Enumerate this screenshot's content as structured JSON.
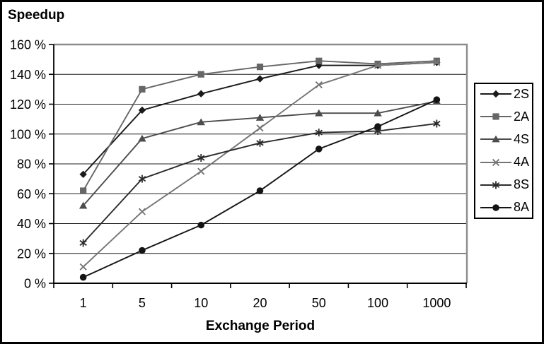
{
  "chart_data": {
    "type": "line",
    "title": "Speedup",
    "xlabel": "Exchange Period",
    "ylabel": "",
    "categories": [
      "1",
      "5",
      "10",
      "20",
      "50",
      "100",
      "1000"
    ],
    "ylim": [
      0,
      160
    ],
    "y_tick_step": 20,
    "y_ticks": [
      "0 %",
      "20 %",
      "40 %",
      "60 %",
      "80 %",
      "100 %",
      "120 %",
      "140 %",
      "160 %"
    ],
    "grid": "horizontal",
    "legend_position": "right",
    "series": [
      {
        "name": "2S",
        "marker": "diamond",
        "color": "#1a1a1a",
        "values": [
          73,
          116,
          127,
          137,
          146,
          146,
          148
        ]
      },
      {
        "name": "2A",
        "marker": "square",
        "color": "#666666",
        "values": [
          62,
          130,
          140,
          145,
          149,
          147,
          149
        ]
      },
      {
        "name": "4S",
        "marker": "triangle",
        "color": "#4d4d4d",
        "values": [
          52,
          97,
          108,
          111,
          114,
          114,
          122
        ]
      },
      {
        "name": "4A",
        "marker": "x",
        "color": "#757575",
        "values": [
          11,
          48,
          75,
          104,
          133,
          146,
          148
        ]
      },
      {
        "name": "8S",
        "marker": "asterisk",
        "color": "#2b2b2b",
        "values": [
          27,
          70,
          84,
          94,
          101,
          102,
          107
        ]
      },
      {
        "name": "8A",
        "marker": "circle",
        "color": "#141414",
        "values": [
          4,
          22,
          39,
          62,
          90,
          105,
          123
        ]
      }
    ],
    "colors": {
      "background": "#ffffff",
      "frame_border": "#000000",
      "axis": "#000000",
      "gridline": "#1f1f1f",
      "plot_border": "#8c8c8c"
    }
  }
}
